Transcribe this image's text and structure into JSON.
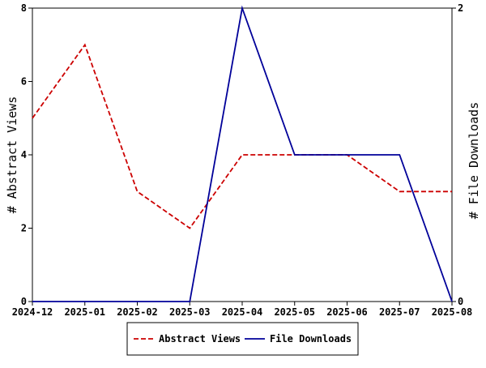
{
  "chart_data": {
    "type": "line",
    "x": [
      "2024-12",
      "2025-01",
      "2025-02",
      "2025-03",
      "2025-04",
      "2025-05",
      "2025-06",
      "2025-07",
      "2025-08"
    ],
    "series": [
      {
        "name": "Abstract Views",
        "axis": "left",
        "color": "#cc0000",
        "dash": "dashed",
        "values": [
          5,
          7,
          3,
          2,
          4,
          4,
          4,
          3,
          3
        ]
      },
      {
        "name": "File Downloads",
        "axis": "right",
        "color": "#000099",
        "dash": "solid",
        "values": [
          0,
          0,
          0,
          0,
          2,
          1,
          1,
          1,
          0
        ]
      }
    ],
    "ylabel_left": "# Abstract Views",
    "ylabel_right": "# File Downloads",
    "ylim_left": [
      0,
      8
    ],
    "yticks_left": [
      0,
      2,
      4,
      6,
      8
    ],
    "ylim_right": [
      0,
      2
    ],
    "yticks_right": [
      0,
      2
    ],
    "grid": false,
    "legend_position": "bottom-center"
  }
}
